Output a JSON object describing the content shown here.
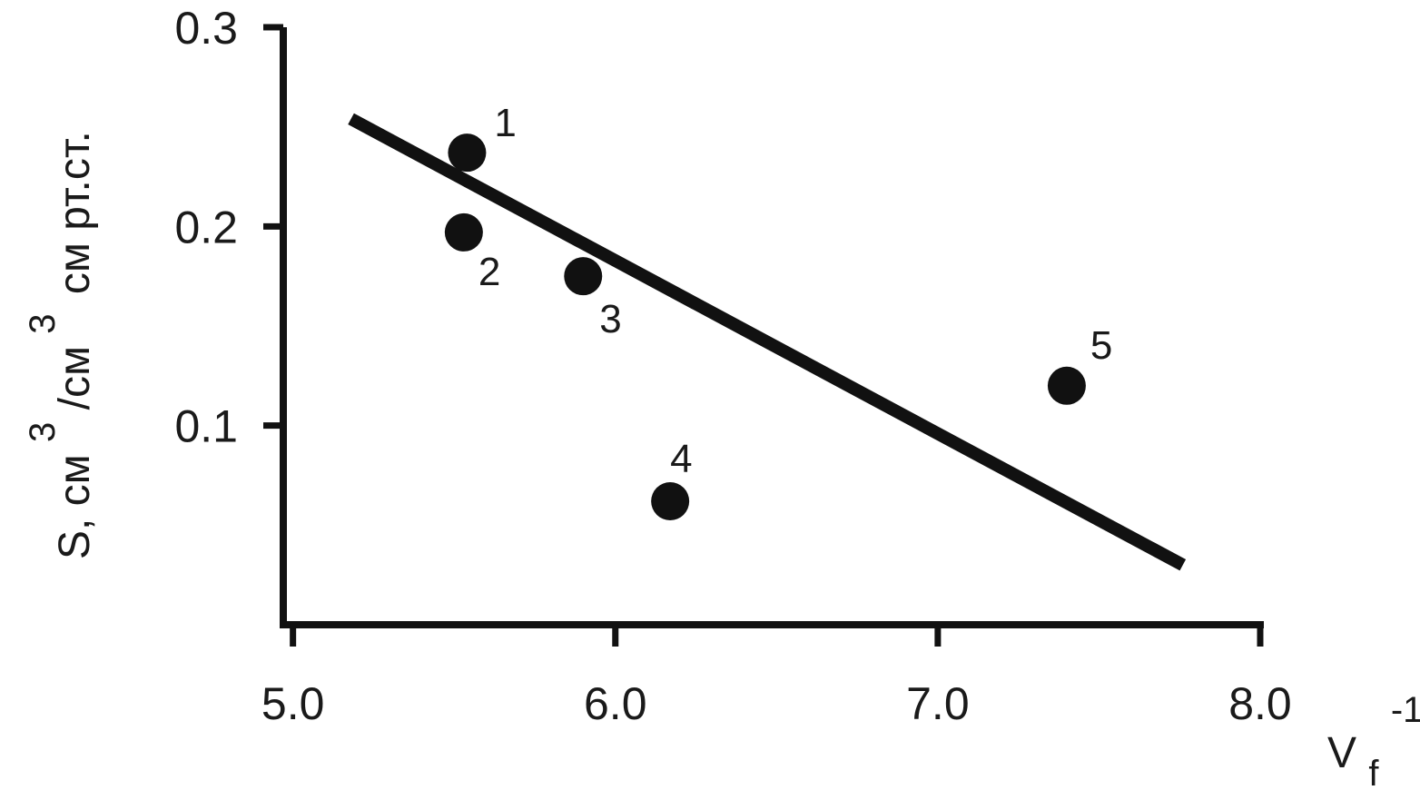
{
  "chart_data": {
    "type": "scatter",
    "x_ticks": [
      "5.0",
      "6.0",
      "7.0",
      "8.0"
    ],
    "y_ticks": [
      "0.1",
      "0.2",
      "0.3"
    ],
    "xlim": [
      4.97,
      8.0
    ],
    "ylim": [
      0.0,
      0.3
    ],
    "xlabel": {
      "main": "V",
      "subscript": "f",
      "superscript": "-1"
    },
    "ylabel": {
      "part1": "S, см",
      "sup1": "3",
      "part2": "/см",
      "sup2": "3",
      "part3": "см рт.ст."
    },
    "points": [
      {
        "label": "1",
        "x": 5.54,
        "y": 0.237
      },
      {
        "label": "2",
        "x": 5.53,
        "y": 0.197
      },
      {
        "label": "3",
        "x": 5.9,
        "y": 0.175
      },
      {
        "label": "4",
        "x": 6.17,
        "y": 0.062
      },
      {
        "label": "5",
        "x": 7.4,
        "y": 0.12
      }
    ],
    "trendline": {
      "x": [
        5.18,
        7.76
      ],
      "y": [
        0.254,
        0.03
      ]
    },
    "grid": false,
    "legend": "none",
    "colors": {
      "points": "#111111",
      "line": "#111111",
      "axes": "#111111"
    }
  }
}
